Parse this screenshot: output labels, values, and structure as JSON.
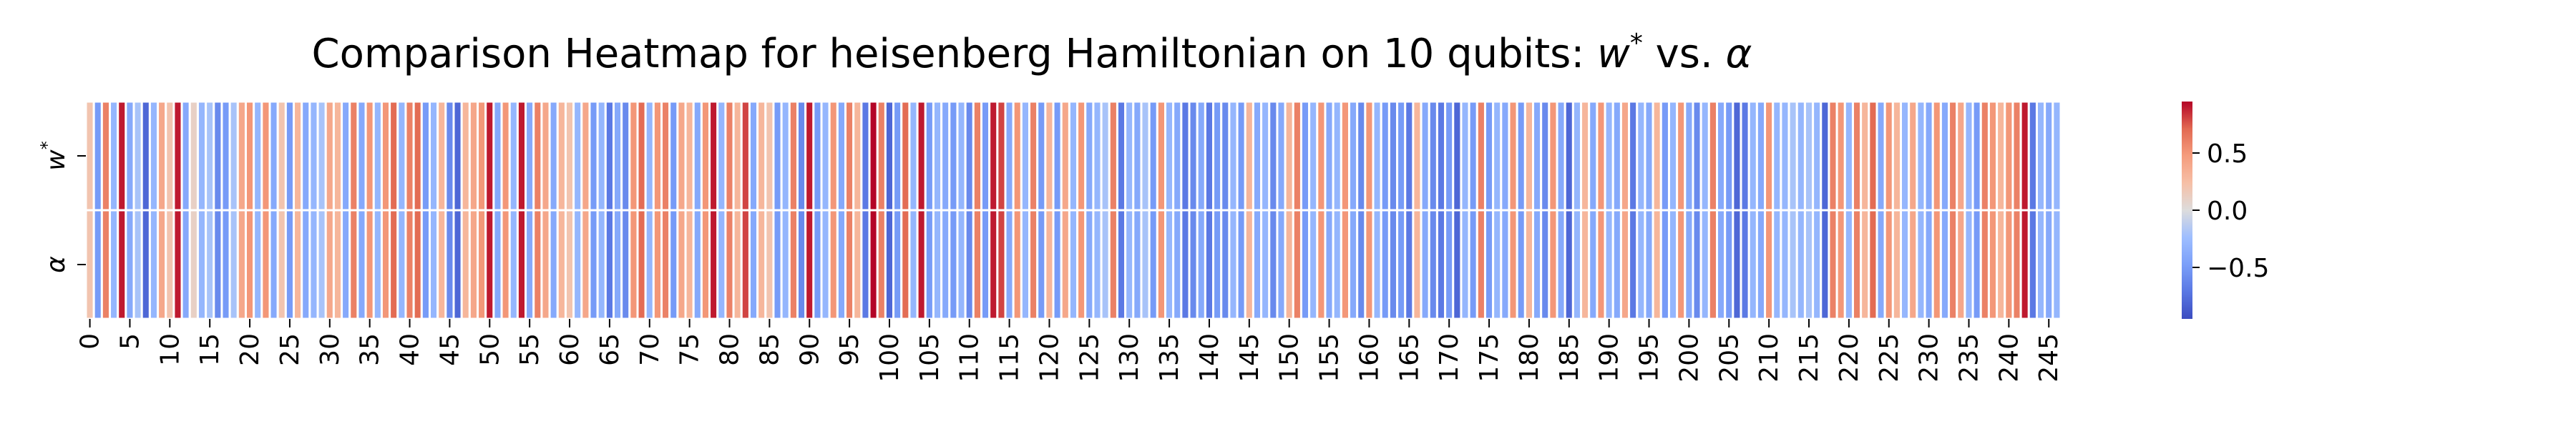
{
  "chart_data": {
    "type": "heatmap",
    "title": "Comparison Heatmap for heisenberg Hamiltonian on 10 qubits: w* vs. α",
    "title_parts": {
      "prefix": "Comparison Heatmap for heisenberg Hamiltonian on 10 qubits: ",
      "w": "w",
      "star": "*",
      "vs": " vs. ",
      "alpha": "α"
    },
    "rows": [
      {
        "label": "w",
        "label_sup": "*"
      },
      {
        "label": "α",
        "label_sup": ""
      }
    ],
    "x_tick_labels": [
      "0",
      "5",
      "10",
      "15",
      "20",
      "25",
      "30",
      "35",
      "40",
      "45",
      "50",
      "55",
      "60",
      "65",
      "70",
      "75",
      "80",
      "85",
      "90",
      "95",
      "100",
      "105",
      "110",
      "115",
      "120",
      "125",
      "130",
      "135",
      "140",
      "145",
      "150",
      "155",
      "160",
      "165",
      "170",
      "175",
      "180",
      "185",
      "190",
      "195",
      "200",
      "205",
      "210",
      "215",
      "220",
      "225",
      "230",
      "235",
      "240",
      "245"
    ],
    "colorbar": {
      "colormap": "coolwarm",
      "vmin": -0.95,
      "vmax": 0.95,
      "tick_values": [
        0.5,
        0.0,
        -0.5
      ],
      "tick_labels": [
        "0.5",
        "0.0",
        "−0.5"
      ]
    },
    "columns": 252,
    "values": [
      0.2,
      -0.5,
      0.6,
      -0.3,
      0.9,
      -0.4,
      -0.2,
      -0.8,
      -0.3,
      0.4,
      0.2,
      0.9,
      -0.4,
      0.1,
      -0.3,
      -0.2,
      -0.6,
      -0.5,
      -0.2,
      0.4,
      0.5,
      -0.3,
      0.5,
      -0.4,
      0.2,
      -0.5,
      0.3,
      -0.4,
      -0.3,
      -0.2,
      0.4,
      0.3,
      -0.4,
      0.6,
      -0.4,
      0.5,
      -0.3,
      0.5,
      0.7,
      -0.3,
      0.6,
      0.7,
      -0.5,
      -0.3,
      0.3,
      -0.6,
      -0.8,
      0.3,
      0.4,
      0.5,
      0.9,
      -0.4,
      0.5,
      -0.3,
      0.9,
      -0.4,
      0.6,
      0.4,
      -0.4,
      0.3,
      0.2,
      -0.3,
      0.4,
      -0.5,
      -0.3,
      -0.7,
      -0.4,
      -0.6,
      0.5,
      0.7,
      -0.3,
      0.5,
      0.6,
      -0.5,
      0.4,
      0.3,
      -0.4,
      0.5,
      0.9,
      -0.3,
      0.6,
      0.3,
      0.8,
      -0.4,
      0.3,
      0.2,
      -0.5,
      -0.3,
      0.6,
      -0.6,
      0.9,
      -0.5,
      -0.3,
      0.5,
      -0.4,
      0.6,
      0.3,
      -0.7,
      0.95,
      0.6,
      -0.8,
      -0.5,
      0.7,
      -0.3,
      0.9,
      -0.5,
      -0.3,
      -0.4,
      -0.5,
      -0.3,
      -0.6,
      0.6,
      -0.5,
      0.9,
      0.8,
      -0.4,
      0.5,
      -0.3,
      0.6,
      -0.5,
      0.3,
      -0.5,
      0.4,
      -0.3,
      0.5,
      -0.4,
      -0.3,
      -0.2,
      0.6,
      -0.7,
      -0.3,
      -0.4,
      -0.2,
      -0.5,
      0.5,
      -0.3,
      -0.4,
      -0.7,
      -0.6,
      -0.4,
      -0.7,
      -0.5,
      -0.6,
      -0.3,
      -0.5,
      0.3,
      -0.4,
      -0.3,
      -0.6,
      -0.4,
      0.3,
      0.6,
      -0.5,
      -0.3,
      0.5,
      -0.4,
      -0.3,
      0.5,
      -0.4,
      -0.6,
      0.5,
      -0.3,
      -0.5,
      -0.6,
      -0.5,
      -0.7,
      0.3,
      -0.4,
      -0.6,
      -0.7,
      -0.5,
      -0.8,
      -0.3,
      -0.5,
      0.6,
      -0.5,
      -0.3,
      -0.4,
      0.5,
      -0.5,
      0.3,
      -0.4,
      -0.6,
      0.5,
      -0.4,
      -0.8,
      -0.3,
      0.3,
      -0.4,
      0.5,
      -0.3,
      -0.4,
      0.4,
      -0.7,
      -0.3,
      -0.4,
      0.3,
      -0.5,
      -0.3,
      0.5,
      -0.4,
      -0.6,
      -0.3,
      0.6,
      -0.4,
      -0.5,
      -0.8,
      -0.7,
      -0.3,
      -0.4,
      0.5,
      -0.3,
      -0.3,
      -0.2,
      -0.3,
      -0.2,
      -0.3,
      -0.8,
      0.6,
      0.5,
      -0.3,
      0.6,
      0.3,
      0.7,
      -0.4,
      0.5,
      0.3,
      -0.3,
      0.4,
      -0.3,
      -0.4,
      0.5,
      -0.4,
      0.6,
      0.4,
      -0.3,
      -0.5,
      0.6,
      0.5,
      0.3,
      0.5,
      0.6,
      0.9,
      -0.7,
      -0.3,
      -0.4,
      -0.3
    ]
  }
}
